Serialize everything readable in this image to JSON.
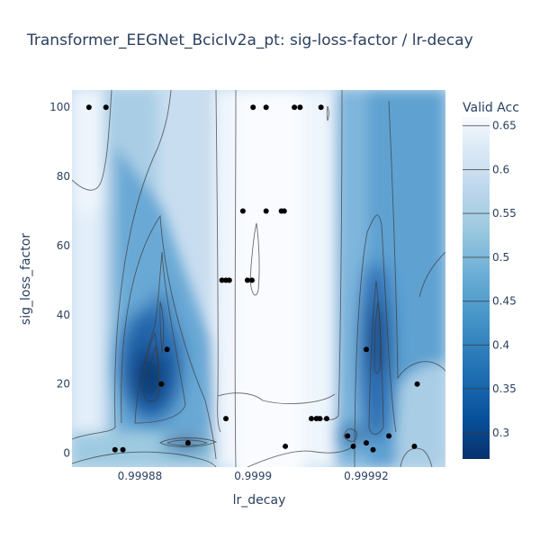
{
  "chart_data": {
    "type": "contour",
    "title": "Transformer_EEGNet_BcicIv2a_pt: sig-loss-factor / lr-decay",
    "xlabel": "lr_decay",
    "ylabel": "sig_loss_factor",
    "xlim": [
      0.999868,
      0.999934
    ],
    "ylim": [
      -4,
      105
    ],
    "x_ticks": [
      {
        "value": 0.99988,
        "label": "0.99988"
      },
      {
        "value": 0.9999,
        "label": "0.9999"
      },
      {
        "value": 0.99992,
        "label": "0.99992"
      }
    ],
    "y_ticks": [
      {
        "value": 0,
        "label": "0"
      },
      {
        "value": 20,
        "label": "20"
      },
      {
        "value": 40,
        "label": "40"
      },
      {
        "value": 60,
        "label": "60"
      },
      {
        "value": 80,
        "label": "80"
      },
      {
        "value": 100,
        "label": "100"
      }
    ],
    "colorbar": {
      "title": "Valid Acc",
      "range": [
        0.27,
        0.66
      ],
      "ticks": [
        0.3,
        0.35,
        0.4,
        0.45,
        0.5,
        0.55,
        0.6,
        0.65
      ],
      "tick_labels": [
        "0.3",
        "0.35",
        "0.4",
        "0.45",
        "0.5",
        "0.55",
        "0.6",
        "0.65"
      ],
      "colorscale": "Blues (reversed)"
    },
    "points": [
      {
        "x": 0.999871,
        "y": 100
      },
      {
        "x": 0.999874,
        "y": 100
      },
      {
        "x": 0.9998756,
        "y": 1
      },
      {
        "x": 0.999877,
        "y": 1
      },
      {
        "x": 0.9998838,
        "y": 20
      },
      {
        "x": 0.9998848,
        "y": 30
      },
      {
        "x": 0.9998885,
        "y": 3
      },
      {
        "x": 0.9998952,
        "y": 10
      },
      {
        "x": 0.9998945,
        "y": 50
      },
      {
        "x": 0.9998952,
        "y": 50
      },
      {
        "x": 0.9998958,
        "y": 50
      },
      {
        "x": 0.999899,
        "y": 50
      },
      {
        "x": 0.9998998,
        "y": 50
      },
      {
        "x": 0.9998982,
        "y": 70
      },
      {
        "x": 0.9999,
        "y": 100
      },
      {
        "x": 0.9999023,
        "y": 100
      },
      {
        "x": 0.9999023,
        "y": 70
      },
      {
        "x": 0.999905,
        "y": 70
      },
      {
        "x": 0.9999055,
        "y": 70
      },
      {
        "x": 0.9999057,
        "y": 2
      },
      {
        "x": 0.9999073,
        "y": 100
      },
      {
        "x": 0.9999083,
        "y": 100
      },
      {
        "x": 0.999912,
        "y": 100
      },
      {
        "x": 0.9999103,
        "y": 10
      },
      {
        "x": 0.9999112,
        "y": 10
      },
      {
        "x": 0.9999118,
        "y": 10
      },
      {
        "x": 0.999913,
        "y": 10
      },
      {
        "x": 0.9999167,
        "y": 5
      },
      {
        "x": 0.9999177,
        "y": 2
      },
      {
        "x": 0.99992,
        "y": 30
      },
      {
        "x": 0.99992,
        "y": 3
      },
      {
        "x": 0.9999212,
        "y": 1
      },
      {
        "x": 0.999924,
        "y": 5
      },
      {
        "x": 0.9999285,
        "y": 2
      },
      {
        "x": 0.999929,
        "y": 20
      }
    ]
  }
}
